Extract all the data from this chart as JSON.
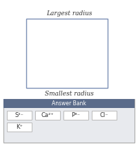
{
  "title_largest": "Largest radius",
  "title_smallest": "Smallest radius",
  "answer_bank_label": "Answer Bank",
  "ions_row1": [
    "S²⁻",
    "Ca²⁺",
    "P³⁻",
    "Cl⁻"
  ],
  "ions_row2": [
    "K⁺"
  ],
  "bg_color": "#ffffff",
  "box_border_color": "#7b8fb5",
  "answer_bank_header_color": "#5a6b8a",
  "answer_bank_bg_color": "#e8eaee",
  "ion_box_color": "#ffffff",
  "ion_box_border": "#bbbbbb",
  "text_color_header": "#ffffff",
  "text_color_label": "#333333",
  "text_color_ion": "#333333",
  "fig_w": 2.0,
  "fig_h": 2.08,
  "dpi": 100
}
